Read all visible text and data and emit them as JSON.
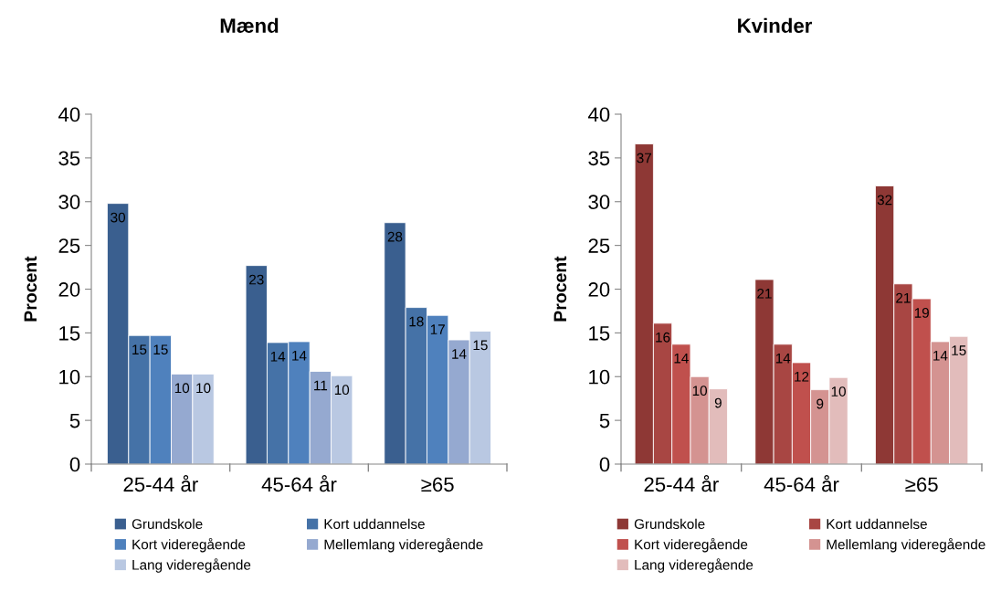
{
  "chart_data": [
    {
      "type": "bar",
      "title": "Mænd",
      "ylabel": "Procent",
      "categories": [
        "25-44 år",
        "45-64 år",
        "≥65"
      ],
      "ylim": [
        0,
        40
      ],
      "yticks": [
        0,
        5,
        10,
        15,
        20,
        25,
        30,
        35,
        40
      ],
      "grid": false,
      "legend": "bottom",
      "series": [
        {
          "name": "Grundskole",
          "color": "#3a5f8f",
          "values": [
            29.8,
            22.7,
            27.6
          ],
          "value_labels": [
            "30",
            "23",
            "28"
          ]
        },
        {
          "name": "Kort uddannelse",
          "color": "#4572a7",
          "values": [
            14.7,
            13.9,
            17.9
          ],
          "value_labels": [
            "15",
            "14",
            "18"
          ]
        },
        {
          "name": "Kort videregående",
          "color": "#4f81bd",
          "values": [
            14.7,
            14.0,
            17.0
          ],
          "value_labels": [
            "15",
            "14",
            "17"
          ]
        },
        {
          "name": "Mellemlang videregående",
          "color": "#95a9d0",
          "values": [
            10.3,
            10.6,
            14.2
          ],
          "value_labels": [
            "10",
            "11",
            "14"
          ]
        },
        {
          "name": "Lang videregående",
          "color": "#b9c8e2",
          "values": [
            10.3,
            10.1,
            15.2
          ],
          "value_labels": [
            "10",
            "10",
            "15"
          ]
        }
      ]
    },
    {
      "type": "bar",
      "title": "Kvinder",
      "ylabel": "Procent",
      "categories": [
        "25-44 år",
        "45-64 år",
        "≥65"
      ],
      "ylim": [
        0,
        40
      ],
      "yticks": [
        0,
        5,
        10,
        15,
        20,
        25,
        30,
        35,
        40
      ],
      "grid": false,
      "legend": "bottom",
      "series": [
        {
          "name": "Grundskole",
          "color": "#8e3835",
          "values": [
            36.6,
            21.1,
            31.8
          ],
          "value_labels": [
            "37",
            "21",
            "32"
          ]
        },
        {
          "name": "Kort uddannelse",
          "color": "#a84643",
          "values": [
            16.1,
            13.7,
            20.6
          ],
          "value_labels": [
            "16",
            "14",
            "21"
          ]
        },
        {
          "name": "Kort videregående",
          "color": "#c0504d",
          "values": [
            13.7,
            11.6,
            18.9
          ],
          "value_labels": [
            "14",
            "12",
            "19"
          ]
        },
        {
          "name": "Mellemlang videregående",
          "color": "#d49391",
          "values": [
            10.0,
            8.5,
            14.0
          ],
          "value_labels": [
            "10",
            "9",
            "14"
          ]
        },
        {
          "name": "Lang videregående",
          "color": "#e2bcbb",
          "values": [
            8.6,
            9.9,
            14.6
          ],
          "value_labels": [
            "9",
            "10",
            "15"
          ]
        }
      ]
    }
  ]
}
